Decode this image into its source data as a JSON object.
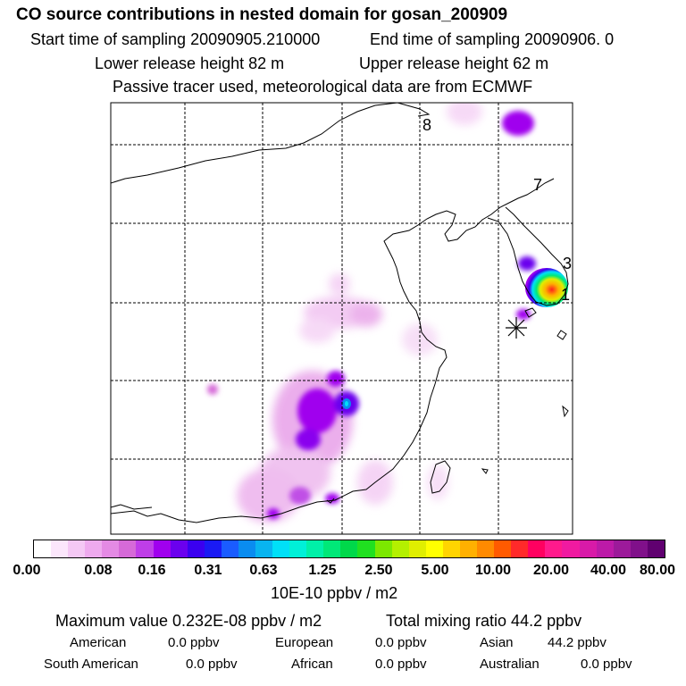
{
  "header": {
    "title": "CO  source contributions in nested domain for gosan_200909",
    "start_time": "Start time of sampling 20090905.210000",
    "end_time": "End time of sampling 20090906.     0",
    "lower_release": "Lower release height   82 m",
    "upper_release": "Upper release height   62 m",
    "tracer_note": "Passive tracer used, meteorological data are from ECMWF"
  },
  "map": {
    "point_labels": [
      "8",
      "7",
      "3",
      "1"
    ],
    "receptor_marker": "star"
  },
  "colorbar": {
    "colors": [
      "#ffffff",
      "#fbe6fb",
      "#f4c8f4",
      "#eeaaee",
      "#e48ae4",
      "#d66ad8",
      "#bf3ee8",
      "#a000ee",
      "#6b00ee",
      "#3a00f0",
      "#1a1af4",
      "#1a5cff",
      "#0a8cf0",
      "#08b4f0",
      "#00e0f8",
      "#00f0d8",
      "#00f0a8",
      "#00e878",
      "#00d84a",
      "#20e020",
      "#7ce800",
      "#b4f000",
      "#e0ee00",
      "#ffff00",
      "#ffd400",
      "#ffb000",
      "#ff8a00",
      "#ff5a00",
      "#ff2a2a",
      "#ff0060",
      "#ff1a8c",
      "#f01aa0",
      "#d81aa8",
      "#bc1aa8",
      "#9c1a9a",
      "#80108a",
      "#600070"
    ],
    "tick_labels": [
      "0.00",
      "0.08",
      "0.16",
      "0.31",
      "0.63",
      "1.25",
      "2.50",
      "5.00",
      "10.00",
      "20.00",
      "40.00",
      "80.00"
    ],
    "unit": "10E-10 ppbv / m2"
  },
  "stats": {
    "maximum_value": "Maximum value  0.232E-08 ppbv / m2",
    "total_mixing_ratio": "Total mixing ratio       44.2 ppbv",
    "regions": [
      {
        "name": "American",
        "value": "0.0 ppbv"
      },
      {
        "name": "European",
        "value": "0.0 ppbv"
      },
      {
        "name": "Asian",
        "value": "44.2 ppbv"
      },
      {
        "name": "South American",
        "value": "0.0 ppbv"
      },
      {
        "name": "African",
        "value": "0.0 ppbv"
      },
      {
        "name": "Australian",
        "value": "0.0 ppbv"
      }
    ]
  }
}
